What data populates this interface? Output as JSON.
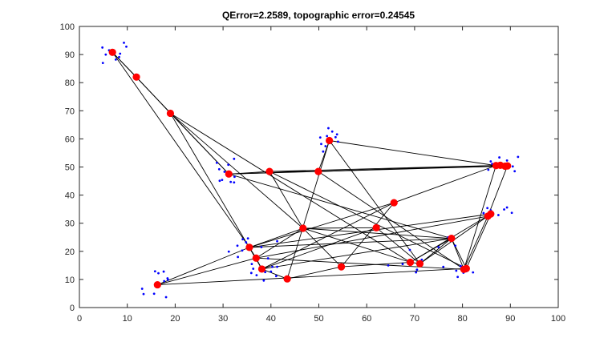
{
  "chart_data": {
    "type": "scatter",
    "title": "QError=2.2589, topographic error=0.24545",
    "xlabel": "",
    "ylabel": "",
    "xlim": [
      0,
      100
    ],
    "ylim": [
      0,
      100
    ],
    "xticks": [
      0,
      10,
      20,
      30,
      40,
      50,
      60,
      70,
      80,
      90,
      100
    ],
    "yticks": [
      0,
      10,
      20,
      30,
      40,
      50,
      60,
      70,
      80,
      90,
      100
    ],
    "grid": false,
    "colors": {
      "data_points": "#0000ff",
      "neurons": "#ff0000",
      "connections": "#000000",
      "axes": "#262626"
    },
    "data_points": [
      [
        4.8,
        92.5
      ],
      [
        5.5,
        90.0
      ],
      [
        4.9,
        87.0
      ],
      [
        6.2,
        91.5
      ],
      [
        7.6,
        88.2
      ],
      [
        8.3,
        89.1
      ],
      [
        8.5,
        90.3
      ],
      [
        9.3,
        94.2
      ],
      [
        9.8,
        92.8
      ],
      [
        7.0,
        91.0
      ],
      [
        28.7,
        51.5
      ],
      [
        29.2,
        49.2
      ],
      [
        29.3,
        45.1
      ],
      [
        29.8,
        45.4
      ],
      [
        30.3,
        48.3
      ],
      [
        31.1,
        50.8
      ],
      [
        31.6,
        44.7
      ],
      [
        32.4,
        46.5
      ],
      [
        32.3,
        52.9
      ],
      [
        32.3,
        44.5
      ],
      [
        50.5,
        58.2
      ],
      [
        50.9,
        55.5
      ],
      [
        51.4,
        57.4
      ],
      [
        51.7,
        61.0
      ],
      [
        52.0,
        63.8
      ],
      [
        52.8,
        62.6
      ],
      [
        53.5,
        60.6
      ],
      [
        53.8,
        61.6
      ],
      [
        54.0,
        59.0
      ],
      [
        50.3,
        60.5
      ],
      [
        85.4,
        49.0
      ],
      [
        86.2,
        51.1
      ],
      [
        87.7,
        53.4
      ],
      [
        88.9,
        50.6
      ],
      [
        89.3,
        52.3
      ],
      [
        90.5,
        50.2
      ],
      [
        90.9,
        48.5
      ],
      [
        91.6,
        53.6
      ],
      [
        86.8,
        50.6
      ],
      [
        85.9,
        52.0
      ],
      [
        85.2,
        35.4
      ],
      [
        85.4,
        31.7
      ],
      [
        85.9,
        34.6
      ],
      [
        86.4,
        33.3
      ],
      [
        88.7,
        34.9
      ],
      [
        89.3,
        35.6
      ],
      [
        90.3,
        33.7
      ],
      [
        86.0,
        34.0
      ],
      [
        84.4,
        33.6
      ],
      [
        87.5,
        32.9
      ],
      [
        34.1,
        24.3
      ],
      [
        34.8,
        23.2
      ],
      [
        35.2,
        24.6
      ],
      [
        33.1,
        18.0
      ],
      [
        31.2,
        19.9
      ],
      [
        34.0,
        20.3
      ],
      [
        39.4,
        17.5
      ],
      [
        41.3,
        23.6
      ],
      [
        36.3,
        13.8
      ],
      [
        40.3,
        14.5
      ],
      [
        41.3,
        14.5
      ],
      [
        38.8,
        12.6
      ],
      [
        38.5,
        9.6
      ],
      [
        41.1,
        11.2
      ],
      [
        35.9,
        12.3
      ],
      [
        33.0,
        22.0
      ],
      [
        36.0,
        15.5
      ],
      [
        38.0,
        21.5
      ],
      [
        40.0,
        12.8
      ],
      [
        37.0,
        11.5
      ],
      [
        13.1,
        6.7
      ],
      [
        13.4,
        4.8
      ],
      [
        15.6,
        4.9
      ],
      [
        15.8,
        12.9
      ],
      [
        16.5,
        12.2
      ],
      [
        17.6,
        12.8
      ],
      [
        18.4,
        10.4
      ],
      [
        18.1,
        3.7
      ],
      [
        17.7,
        9.4
      ],
      [
        18.5,
        9.9
      ],
      [
        78.7,
        13.1
      ],
      [
        79.0,
        10.9
      ],
      [
        79.6,
        14.8
      ],
      [
        80.1,
        14.1
      ],
      [
        80.6,
        13.3
      ],
      [
        80.8,
        12.9
      ],
      [
        81.2,
        13.8
      ],
      [
        82.2,
        12.5
      ],
      [
        80.2,
        12.4
      ],
      [
        79.8,
        14.5
      ],
      [
        77.0,
        25.0
      ],
      [
        76.0,
        14.5
      ],
      [
        78.5,
        22.0
      ],
      [
        70.5,
        13.5
      ],
      [
        70.3,
        12.5
      ],
      [
        67.5,
        15.5
      ],
      [
        71.5,
        17.0
      ],
      [
        75.0,
        21.5
      ],
      [
        64.5,
        15.0
      ],
      [
        69.0,
        20.5
      ]
    ],
    "neurons": [
      [
        6.9,
        90.8
      ],
      [
        11.9,
        82.0
      ],
      [
        19.0,
        69.1
      ],
      [
        31.2,
        47.5
      ],
      [
        39.7,
        48.4
      ],
      [
        49.9,
        48.4
      ],
      [
        52.2,
        59.4
      ],
      [
        65.7,
        37.3
      ],
      [
        62.0,
        28.4
      ],
      [
        46.7,
        28.2
      ],
      [
        35.5,
        21.4
      ],
      [
        36.9,
        17.6
      ],
      [
        38.1,
        13.7
      ],
      [
        43.4,
        10.2
      ],
      [
        54.7,
        14.5
      ],
      [
        69.1,
        16.1
      ],
      [
        71.1,
        15.6
      ],
      [
        77.7,
        24.6
      ],
      [
        80.3,
        13.6
      ],
      [
        80.8,
        13.9
      ],
      [
        85.3,
        32.5
      ],
      [
        85.9,
        33.3
      ],
      [
        87.0,
        50.5
      ],
      [
        87.9,
        50.6
      ],
      [
        88.9,
        50.3
      ],
      [
        89.4,
        50.4
      ],
      [
        16.3,
        8.1
      ]
    ],
    "connections": [
      [
        0,
        1
      ],
      [
        1,
        2
      ],
      [
        0,
        10
      ],
      [
        2,
        3
      ],
      [
        2,
        9
      ],
      [
        2,
        12
      ],
      [
        2,
        15
      ],
      [
        0,
        3
      ],
      [
        3,
        4
      ],
      [
        4,
        5
      ],
      [
        5,
        22
      ],
      [
        3,
        22
      ],
      [
        4,
        23
      ],
      [
        3,
        24
      ],
      [
        6,
        5
      ],
      [
        6,
        22
      ],
      [
        6,
        13
      ],
      [
        6,
        16
      ],
      [
        7,
        22
      ],
      [
        7,
        12
      ],
      [
        7,
        14
      ],
      [
        7,
        10
      ],
      [
        8,
        12
      ],
      [
        8,
        9
      ],
      [
        8,
        16
      ],
      [
        9,
        10
      ],
      [
        9,
        11
      ],
      [
        9,
        14
      ],
      [
        9,
        15
      ],
      [
        9,
        17
      ],
      [
        9,
        4
      ],
      [
        10,
        11
      ],
      [
        11,
        12
      ],
      [
        12,
        13
      ],
      [
        13,
        14
      ],
      [
        14,
        15
      ],
      [
        15,
        16
      ],
      [
        10,
        21
      ],
      [
        11,
        20
      ],
      [
        10,
        17
      ],
      [
        12,
        17
      ],
      [
        11,
        18
      ],
      [
        5,
        18
      ],
      [
        4,
        19
      ],
      [
        3,
        17
      ],
      [
        16,
        17
      ],
      [
        15,
        17
      ],
      [
        17,
        18
      ],
      [
        17,
        19
      ],
      [
        16,
        20
      ],
      [
        15,
        21
      ],
      [
        18,
        20
      ],
      [
        19,
        21
      ],
      [
        20,
        21
      ],
      [
        18,
        22
      ],
      [
        20,
        25
      ],
      [
        22,
        23
      ],
      [
        23,
        24
      ],
      [
        24,
        25
      ],
      [
        26,
        10
      ],
      [
        26,
        19
      ],
      [
        26,
        11
      ]
    ]
  }
}
